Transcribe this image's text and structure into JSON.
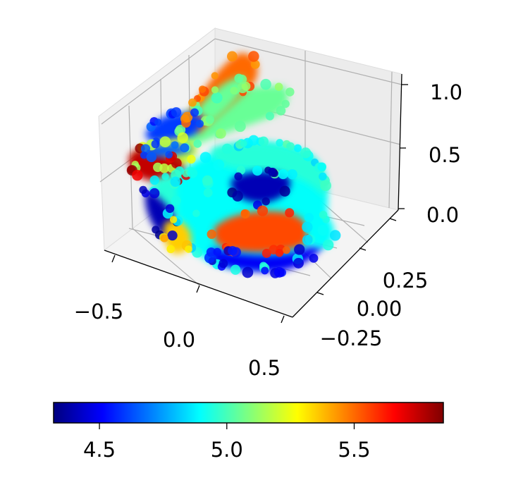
{
  "chart_data": {
    "type": "scatter",
    "dimensions": 3,
    "xlim": [
      -0.75,
      0.6
    ],
    "ylim": [
      -0.45,
      0.45
    ],
    "zlim": [
      0.0,
      1.1
    ],
    "x_ticks": [
      "−0.5",
      "0.0",
      "0.5"
    ],
    "y_ticks": [
      "0.25",
      "0.00",
      "−0.25"
    ],
    "z_ticks": [
      "1.0",
      "0.5",
      "0.0"
    ],
    "grid": true,
    "colormap": "jet",
    "colorbar": {
      "orientation": "horizontal",
      "placement": "bottom",
      "range": [
        4.32,
        5.85
      ],
      "ticks": [
        "4.5",
        "5.0",
        "5.5"
      ],
      "tick_values": [
        4.5,
        5.0,
        5.5
      ],
      "colors": [
        "#00007f",
        "#0000ff",
        "#007fff",
        "#00ffff",
        "#7fff7f",
        "#ffff00",
        "#ff7f00",
        "#ff0000",
        "#7f0000"
      ]
    },
    "point_cloud": "rabbit",
    "value_regions": [
      {
        "part": "ear-tip-left",
        "value": 5.75
      },
      {
        "part": "ear-right-tip",
        "value": 5.5
      },
      {
        "part": "ear-right",
        "value": 5.05
      },
      {
        "part": "ear-left-base",
        "value": 4.65
      },
      {
        "part": "ear-left",
        "value": 5.2
      },
      {
        "part": "head-top",
        "value": 4.6
      },
      {
        "part": "face",
        "value": 4.95
      },
      {
        "part": "chest",
        "value": 4.4
      },
      {
        "part": "body",
        "value": 4.9
      },
      {
        "part": "back",
        "value": 4.95
      },
      {
        "part": "back-hollow",
        "value": 4.4
      },
      {
        "part": "haunch",
        "value": 5.55
      },
      {
        "part": "belly",
        "value": 4.5
      },
      {
        "part": "tail",
        "value": 4.9
      },
      {
        "part": "front-paw",
        "value": 5.35
      }
    ]
  }
}
